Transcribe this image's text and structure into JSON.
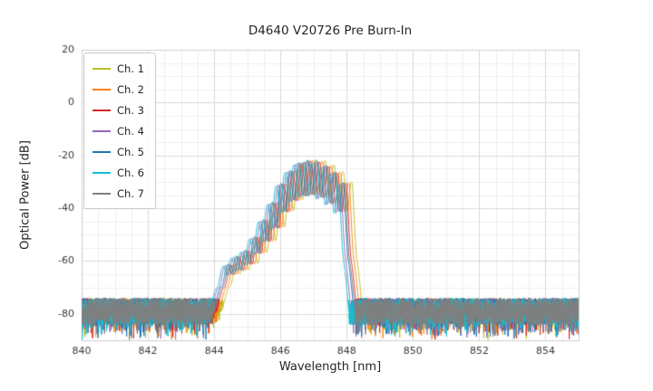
{
  "chart_data": {
    "type": "line",
    "title": "D4640 V20726 Pre Burn-In",
    "xlabel": "Wavelength [nm]",
    "ylabel": "Optical Power [dB]",
    "xlim": [
      840,
      855
    ],
    "ylim": [
      -90,
      20
    ],
    "xticks": [
      840,
      842,
      844,
      846,
      848,
      850,
      852,
      854
    ],
    "yticks": [
      20,
      0,
      -20,
      -40,
      -60,
      -80
    ],
    "minor_x_step": 0.5,
    "minor_y_step": 5,
    "grid": true,
    "legend_position": "upper left",
    "noise": {
      "floor_db": -79,
      "amp_db": 5,
      "dip_prob": 0.12,
      "dip_extra_db": 6
    },
    "ripple": {
      "period_nm": 0.27,
      "max_depth_db": 13,
      "min_depth_db": 2,
      "depth_slope": 0.3,
      "depth_ref_db": -78,
      "exponent": 1.3
    },
    "envelope_points": [
      [
        843.95,
        -79
      ],
      [
        844.15,
        -73
      ],
      [
        844.3,
        -65
      ],
      [
        844.5,
        -60
      ],
      [
        844.75,
        -58
      ],
      [
        845.0,
        -56
      ],
      [
        845.25,
        -51
      ],
      [
        845.5,
        -45
      ],
      [
        845.75,
        -39
      ],
      [
        846.0,
        -32
      ],
      [
        846.25,
        -27
      ],
      [
        846.5,
        -23.5
      ],
      [
        846.75,
        -22.2
      ],
      [
        847.0,
        -22.0
      ],
      [
        847.25,
        -23.0
      ],
      [
        847.5,
        -25.0
      ],
      [
        847.75,
        -27.5
      ],
      [
        847.95,
        -31
      ],
      [
        848.05,
        -45
      ],
      [
        848.15,
        -65
      ],
      [
        848.25,
        -79
      ]
    ],
    "series": [
      {
        "name": "Ch. 1",
        "color": "#bcbd22",
        "shift_nm": 0.22,
        "dy_db": 0.5,
        "seed": 11
      },
      {
        "name": "Ch. 2",
        "color": "#ff7f0e",
        "shift_nm": 0.13,
        "dy_db": 0.2,
        "seed": 22
      },
      {
        "name": "Ch. 3",
        "color": "#d62728",
        "shift_nm": 0.05,
        "dy_db": 0.0,
        "seed": 33
      },
      {
        "name": "Ch. 4",
        "color": "#9467bd",
        "shift_nm": -0.12,
        "dy_db": -0.3,
        "seed": 44
      },
      {
        "name": "Ch. 5",
        "color": "#1f77b4",
        "shift_nm": -0.04,
        "dy_db": 0.3,
        "seed": 55
      },
      {
        "name": "Ch. 6",
        "color": "#17becf",
        "shift_nm": -0.18,
        "dy_db": -0.5,
        "seed": 66
      },
      {
        "name": "Ch. 7",
        "color": "#7f7f7f",
        "shift_nm": 0.0,
        "dy_db": 0.1,
        "seed": 77
      }
    ]
  }
}
